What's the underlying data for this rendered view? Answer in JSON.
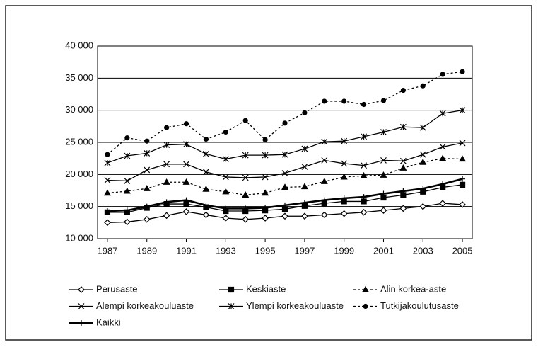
{
  "chart_data": {
    "type": "line",
    "x": [
      1987,
      1988,
      1989,
      1990,
      1991,
      1992,
      1993,
      1994,
      1995,
      1996,
      1997,
      1998,
      1999,
      2000,
      2001,
      2002,
      2003,
      2004,
      2005
    ],
    "xlim": [
      1986.5,
      2005.5
    ],
    "xticks": [
      1987,
      1989,
      1991,
      1993,
      1995,
      1997,
      1999,
      2001,
      2003,
      2005
    ],
    "ylim": [
      10000,
      40000
    ],
    "yticks": [
      {
        "value": 10000,
        "label": "10 000"
      },
      {
        "value": 15000,
        "label": "15 000"
      },
      {
        "value": 20000,
        "label": "20 000"
      },
      {
        "value": 25000,
        "label": "25 000"
      },
      {
        "value": 30000,
        "label": "30 000"
      },
      {
        "value": 35000,
        "label": "35 000"
      },
      {
        "value": 40000,
        "label": "40 000"
      }
    ],
    "grid": true,
    "series": [
      {
        "name": "Perusaste",
        "color": "#000000",
        "marker": "diamond",
        "dash": false,
        "values": [
          12500,
          12600,
          13000,
          13600,
          14200,
          13700,
          13200,
          13000,
          13200,
          13500,
          13500,
          13700,
          13900,
          14100,
          14400,
          14700,
          15000,
          15500,
          15300
        ]
      },
      {
        "name": "Keskiaste",
        "color": "#000000",
        "marker": "square",
        "dash": false,
        "values": [
          14100,
          14100,
          14800,
          15400,
          15400,
          14900,
          14300,
          14300,
          14400,
          14600,
          15100,
          15500,
          15800,
          15800,
          16400,
          16800,
          17300,
          18000,
          18400
        ]
      },
      {
        "name": "Alin korkea-aste",
        "color": "#000000",
        "marker": "triangle",
        "dash": true,
        "values": [
          17100,
          17400,
          17800,
          18800,
          18800,
          17700,
          17300,
          16800,
          17100,
          18000,
          18100,
          18900,
          19600,
          19800,
          19900,
          21000,
          21900,
          22500,
          22400
        ]
      },
      {
        "name": "Alempi korkeakouluaste",
        "color": "#000000",
        "marker": "x",
        "dash": false,
        "values": [
          19100,
          19000,
          20700,
          21600,
          21600,
          20400,
          19600,
          19500,
          19600,
          20200,
          21200,
          22200,
          21700,
          21400,
          22200,
          22100,
          23100,
          24300,
          24900
        ]
      },
      {
        "name": "Ylempi korkeakouluaste",
        "color": "#000000",
        "marker": "asterisk",
        "dash": false,
        "values": [
          21800,
          22900,
          23300,
          24600,
          24700,
          23200,
          22400,
          23000,
          23000,
          23100,
          24000,
          25100,
          25200,
          25900,
          26600,
          27400,
          27300,
          29500,
          30000
        ]
      },
      {
        "name": "Tutkijakoulutusaste",
        "color": "#000000",
        "marker": "circle",
        "dash": true,
        "values": [
          23100,
          25700,
          25200,
          27300,
          27900,
          25500,
          26600,
          28400,
          25400,
          28000,
          29600,
          31400,
          31400,
          30900,
          31500,
          33100,
          33800,
          35600,
          36000
        ]
      },
      {
        "name": "Kaikki",
        "color": "#000000",
        "marker": "plus",
        "dash": false,
        "bold": true,
        "values": [
          14300,
          14400,
          15000,
          15700,
          16000,
          15200,
          14700,
          14700,
          14800,
          15200,
          15600,
          16000,
          16300,
          16500,
          17000,
          17400,
          17800,
          18500,
          19300
        ]
      }
    ],
    "legend": "bottom"
  }
}
